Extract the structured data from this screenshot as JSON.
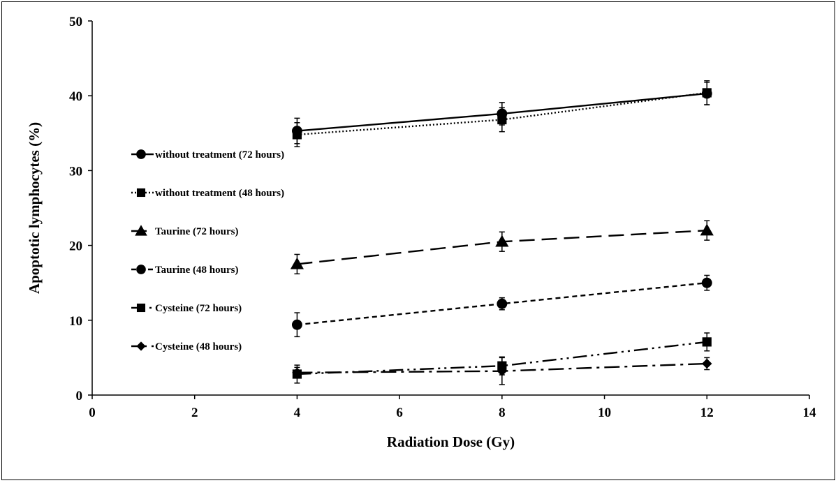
{
  "chart_data": {
    "type": "line",
    "title": "",
    "xlabel": "Radiation Dose (Gy)",
    "ylabel": "Apoptotic lymphocytes (%)",
    "xlim": [
      0,
      14
    ],
    "ylim": [
      0,
      50
    ],
    "xticks": [
      "0",
      "2",
      "4",
      "6",
      "8",
      "10",
      "12",
      "14"
    ],
    "yticks": [
      "0",
      "10",
      "20",
      "30",
      "40",
      "50"
    ],
    "grid": false,
    "legend_position": "left-center",
    "x": [
      4,
      8,
      12
    ],
    "series": [
      {
        "name": "without treatment (72 hours)",
        "values": [
          35.3,
          37.6,
          40.3
        ],
        "errors": [
          1.7,
          1.5,
          1.5
        ],
        "marker": "circle",
        "dash": "solid"
      },
      {
        "name": "without treatment (48 hours)",
        "values": [
          34.8,
          36.8,
          40.4
        ],
        "errors": [
          1.6,
          1.6,
          1.6
        ],
        "marker": "square",
        "dash": "dotted"
      },
      {
        "name": "Taurine (72 hours)",
        "values": [
          17.5,
          20.5,
          22.0
        ],
        "errors": [
          1.3,
          1.3,
          1.3
        ],
        "marker": "triangle",
        "dash": "long-dash"
      },
      {
        "name": "Taurine (48 hours)",
        "values": [
          9.4,
          12.2,
          15.0
        ],
        "errors": [
          1.6,
          0.8,
          1.0
        ],
        "marker": "circle",
        "dash": "short-dash"
      },
      {
        "name": "Cysteine (72 hours)",
        "values": [
          2.8,
          3.9,
          7.1
        ],
        "errors": [
          1.2,
          1.2,
          1.2
        ],
        "marker": "square",
        "dash": "dash-dot-dot"
      },
      {
        "name": "Cysteine (48 hours)",
        "values": [
          3.0,
          3.2,
          4.2
        ],
        "errors": [
          0.7,
          1.8,
          0.8
        ],
        "marker": "diamond",
        "dash": "dash-dot"
      }
    ]
  }
}
